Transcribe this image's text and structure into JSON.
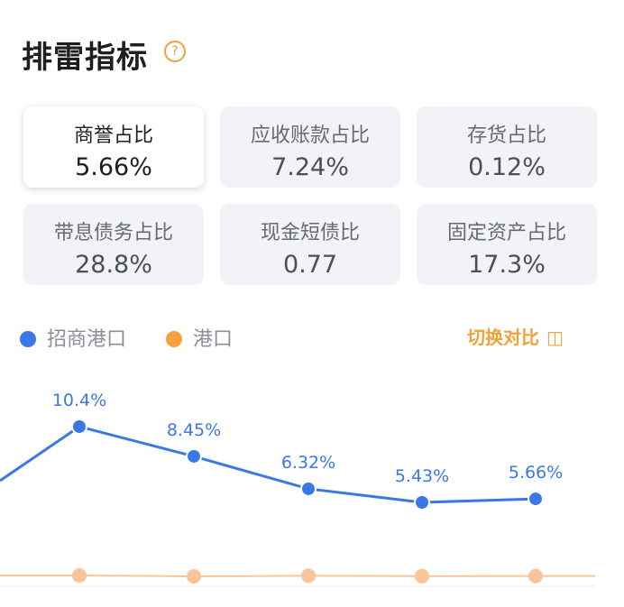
{
  "header": {
    "title": "排雷指标",
    "help_symbol": "?"
  },
  "metrics": [
    {
      "label": "商誉占比",
      "value": "5.66%",
      "selected": true
    },
    {
      "label": "应收账款占比",
      "value": "7.24%",
      "selected": false
    },
    {
      "label": "存货占比",
      "value": "0.12%",
      "selected": false
    },
    {
      "label": "带息债务占比",
      "value": "28.8%",
      "selected": false
    },
    {
      "label": "现金短债比",
      "value": "0.77",
      "selected": false
    },
    {
      "label": "固定资产占比",
      "value": "17.3%",
      "selected": false
    }
  ],
  "legend": [
    {
      "name": "招商港口",
      "color": "#3b78e7"
    },
    {
      "name": "港口",
      "color": "#f7a03c"
    }
  ],
  "switch": {
    "label": "切换对比",
    "icon": "split-compare-icon"
  },
  "colors": {
    "primary_line": "#3b78e7",
    "compare_line": "#f9c49a",
    "accent": "#f0a23c"
  },
  "chart_data": {
    "type": "line",
    "series": [
      {
        "name": "招商港口",
        "values": [
          10.4,
          8.45,
          6.32,
          5.43,
          5.66
        ],
        "labels": [
          "10.4%",
          "8.45%",
          "6.32%",
          "5.43%",
          "5.66%"
        ]
      },
      {
        "name": "港口",
        "values": [
          0.2,
          0.15,
          0.18,
          0.16,
          0.17
        ]
      }
    ],
    "ylim": [
      0,
      11
    ],
    "grid": false
  }
}
